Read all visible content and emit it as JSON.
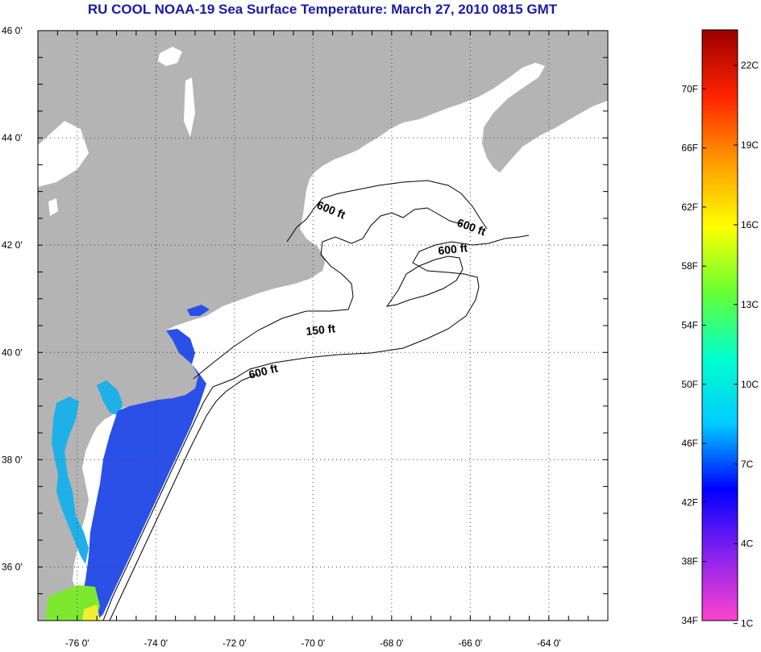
{
  "title": "RU COOL  NOAA-19  Sea Surface Temperature:  March 27, 2010 0815 GMT",
  "map": {
    "lat_labels": [
      "46 0'",
      "44 0'",
      "42 0'",
      "40 0'",
      "38 0'",
      "36 0'"
    ],
    "lat_values": [
      46,
      44,
      42,
      40,
      38,
      36
    ],
    "lon_labels": [
      "-76 0'",
      "-74 0'",
      "-72 0'",
      "-70 0'",
      "-68 0'",
      "-66 0'",
      "-64 0'"
    ],
    "lon_values": [
      -76,
      -74,
      -72,
      -70,
      -68,
      -66,
      -64
    ],
    "lon_range": [
      -77,
      -62.5
    ],
    "lat_range": [
      35,
      46
    ],
    "grid": "dotted",
    "colors": {
      "land": "#b4b4b4",
      "ocean": "#ffffff",
      "sst_cold": "#2a50e8",
      "sst_bay": "#1fb0e8",
      "sst_warm": "#7ee830"
    },
    "contours": [
      {
        "label": "600 ft"
      },
      {
        "label": "600 ft"
      },
      {
        "label": "600 ft"
      },
      {
        "label": "150 ft"
      },
      {
        "label": "600 ft"
      }
    ]
  },
  "colorbar": {
    "gradient": [
      "#ff44cc",
      "#8822ee",
      "#0000ff",
      "#00ccff",
      "#00ffcc",
      "#66ff33",
      "#ffff00",
      "#ff9900",
      "#ff2200",
      "#990000"
    ],
    "f_labels": [
      "70F",
      "66F",
      "62F",
      "58F",
      "54F",
      "50F",
      "46F",
      "42F",
      "38F",
      "34F"
    ],
    "f_values": [
      70,
      66,
      62,
      58,
      54,
      50,
      46,
      42,
      38,
      34
    ],
    "c_labels": [
      "22C",
      "19C",
      "16C",
      "13C",
      "10C",
      "7C",
      "4C",
      "1C"
    ],
    "c_values": [
      22,
      19,
      16,
      13,
      10,
      7,
      4,
      1
    ],
    "range_f": [
      34,
      74
    ]
  }
}
